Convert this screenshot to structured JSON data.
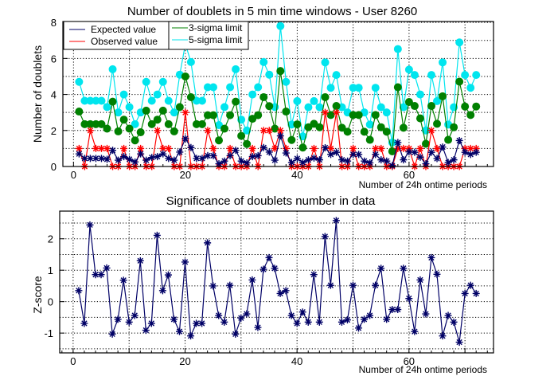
{
  "chart_data": [
    {
      "type": "line",
      "title": "Number of doublets in 5 min time windows - User 8260",
      "xlabel": "Number of 24h ontime periods",
      "ylabel": "Number of doublets",
      "xlim": [
        -1.9,
        75.1
      ],
      "ylim": [
        0,
        8.05
      ],
      "xticks": [
        0,
        20,
        40,
        60
      ],
      "yticks": [
        0,
        2,
        4,
        6,
        8
      ],
      "grid": true,
      "legend_position": "top-left",
      "legend": [
        "Expected value",
        "Observed value",
        "3-sigma limit",
        "5-sigma limit"
      ],
      "x": [
        1,
        2,
        3,
        4,
        5,
        6,
        7,
        8,
        9,
        10,
        11,
        12,
        13,
        14,
        15,
        16,
        17,
        18,
        19,
        20,
        21,
        22,
        23,
        24,
        25,
        26,
        27,
        28,
        29,
        30,
        31,
        32,
        33,
        34,
        35,
        36,
        37,
        38,
        39,
        40,
        41,
        42,
        43,
        44,
        45,
        46,
        47,
        48,
        49,
        50,
        51,
        52,
        53,
        54,
        55,
        56,
        57,
        58,
        59,
        60,
        61,
        62,
        63,
        64,
        65,
        66,
        67,
        68,
        69,
        70,
        71,
        72
      ],
      "series": [
        {
          "name": "Expected value",
          "color": "#000066",
          "marker": "star",
          "values": [
            0.7,
            0.45,
            0.45,
            0.45,
            0.45,
            0.4,
            0.9,
            0.35,
            0.55,
            0.4,
            0.25,
            0.7,
            0.35,
            0.5,
            0.55,
            0.7,
            0.45,
            0.35,
            0.8,
            1.55,
            1.05,
            0.45,
            0.45,
            0.6,
            0.6,
            0.15,
            0.3,
            0.6,
            0.9,
            0.3,
            0.2,
            0.55,
            0.6,
            1.05,
            0.8,
            0.35,
            1.7,
            0.75,
            0.22,
            0.44,
            0.22,
            0.37,
            0.47,
            0.37,
            1.04,
            0.67,
            0.79,
            0.37,
            0.3,
            0.67,
            0.67,
            0.3,
            0.2,
            0.67,
            0.37,
            0.3,
            0.05,
            1.33,
            0.37,
            0.81,
            0.79,
            0.52,
            0.15,
            0.79,
            0.44,
            1.08,
            0.22,
            0.37,
            1.44,
            0.79,
            0.67,
            0.79
          ]
        },
        {
          "name": "Observed value",
          "color": "#ff0000",
          "marker": "star",
          "values": [
            1,
            0,
            2,
            1,
            1,
            1,
            0,
            0,
            1,
            0,
            0,
            1,
            0,
            0,
            2,
            1,
            1,
            0,
            0,
            3,
            0,
            0,
            0,
            2,
            1,
            0,
            0,
            1,
            0,
            0,
            0,
            1,
            0,
            2,
            2,
            1,
            2,
            1,
            0,
            0,
            0,
            0,
            1,
            0,
            3,
            1,
            3,
            0,
            0,
            1,
            0,
            0,
            0,
            1,
            1,
            0,
            0,
            1,
            1,
            1,
            0,
            1,
            0,
            2,
            1,
            0,
            0,
            0,
            0,
            1,
            1,
            1
          ]
        },
        {
          "name": "3-sigma limit",
          "color": "#008000",
          "marker": "circle",
          "values": [
            3.05,
            2.35,
            2.35,
            2.35,
            2.35,
            2.1,
            3.6,
            1.95,
            2.6,
            2.1,
            1.45,
            1.9,
            3.1,
            2.35,
            2.6,
            3.1,
            2.35,
            1.95,
            3.3,
            5.0,
            3.85,
            2.35,
            2.35,
            2.85,
            2.85,
            1.45,
            2.1,
            2.85,
            3.6,
            1.7,
            1.25,
            2.65,
            2.85,
            3.85,
            3.35,
            2.1,
            5.3,
            3.05,
            1.47,
            2.34,
            1.05,
            2.18,
            2.37,
            2.18,
            3.85,
            2.86,
            3.36,
            2.15,
            1.93,
            2.86,
            2.86,
            1.93,
            1.48,
            2.86,
            2.18,
            1.93,
            0.84,
            4.4,
            2.15,
            3.58,
            3.36,
            2.67,
            1.26,
            3.36,
            2.37,
            3.9,
            1.48,
            2.18,
            4.71,
            3.33,
            2.86,
            3.33
          ]
        },
        {
          "name": "5-sigma limit",
          "color": "#00e5ee",
          "marker": "circle",
          "values": [
            4.7,
            3.65,
            3.65,
            3.65,
            3.65,
            3.3,
            5.4,
            3.0,
            4.0,
            3.3,
            2.35,
            3.0,
            4.7,
            3.65,
            4.0,
            4.7,
            3.65,
            3.0,
            5.1,
            6.8,
            5.8,
            3.65,
            3.65,
            4.4,
            4.4,
            2.3,
            3.3,
            4.4,
            5.4,
            2.6,
            2.0,
            4.0,
            4.4,
            5.8,
            5.1,
            3.3,
            7.8,
            4.7,
            2.33,
            3.63,
            1.67,
            3.29,
            3.63,
            3.29,
            5.78,
            4.37,
            5.08,
            3.29,
            3.0,
            4.37,
            4.37,
            3.0,
            2.33,
            4.37,
            3.29,
            3.0,
            1.33,
            6.52,
            3.29,
            5.38,
            5.08,
            4.0,
            2.0,
            5.08,
            3.63,
            5.78,
            2.33,
            3.29,
            6.89,
            5.08,
            4.37,
            5.08
          ]
        }
      ]
    },
    {
      "type": "line",
      "title": "Significance of doublets number in data",
      "xlabel": "Number of 24h ontime periods",
      "ylabel": "Z-score",
      "xlim": [
        -2.4,
        75.1
      ],
      "ylim": [
        -1.63,
        2.88
      ],
      "xticks": [
        0,
        20,
        40,
        60
      ],
      "yticks": [
        -1,
        0,
        1,
        2
      ],
      "grid": true,
      "x": [
        1,
        2,
        3,
        4,
        5,
        6,
        7,
        8,
        9,
        10,
        11,
        12,
        13,
        14,
        15,
        16,
        17,
        18,
        19,
        20,
        21,
        22,
        23,
        24,
        25,
        26,
        27,
        28,
        29,
        30,
        31,
        32,
        33,
        34,
        35,
        36,
        37,
        38,
        39,
        40,
        41,
        42,
        43,
        44,
        45,
        46,
        47,
        48,
        49,
        50,
        51,
        52,
        53,
        54,
        55,
        56,
        57,
        58,
        59,
        60,
        61,
        62,
        63,
        64,
        65,
        66,
        67,
        68,
        69,
        70,
        71,
        72
      ],
      "series": [
        {
          "name": "Z-score",
          "color": "#000066",
          "marker": "star",
          "values": [
            0.35,
            -0.69,
            2.44,
            0.86,
            0.86,
            1.07,
            -1.03,
            -0.56,
            0.68,
            -0.65,
            -0.44,
            1.3,
            -0.91,
            -0.69,
            2.11,
            0.35,
            0.85,
            -0.56,
            -0.95,
            1.26,
            -1.09,
            -0.69,
            -0.69,
            1.87,
            0.5,
            -0.44,
            -0.65,
            0.52,
            -1.03,
            -0.52,
            -0.39,
            0.69,
            -0.82,
            1.03,
            1.4,
            1.06,
            0.26,
            0.35,
            -0.44,
            -0.69,
            -0.33,
            -0.65,
            0.86,
            -0.65,
            2.07,
            0.52,
            2.58,
            -0.65,
            -0.58,
            0.52,
            -0.84,
            -0.56,
            -0.44,
            0.52,
            1.06,
            -0.56,
            -0.25,
            -0.25,
            1.06,
            0.1,
            -0.95,
            0.69,
            -0.39,
            1.4,
            0.87,
            -1.09,
            -0.44,
            -0.65,
            -1.29,
            0.26,
            0.52,
            0.26
          ]
        }
      ]
    }
  ]
}
